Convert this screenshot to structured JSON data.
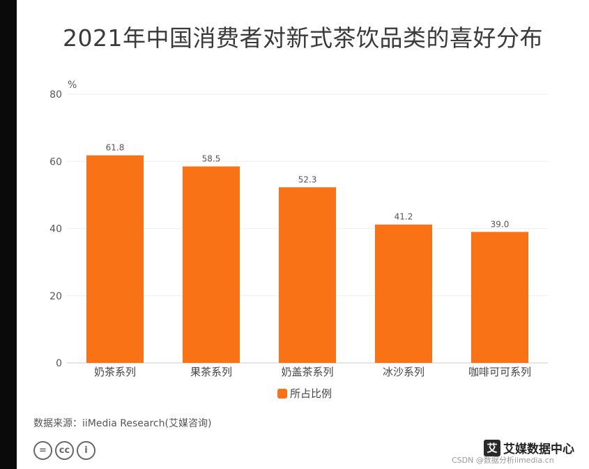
{
  "page": {
    "title": "2021年中国消费者对新式茶饮品类的喜好分布"
  },
  "chart_data": {
    "type": "bar",
    "title": "2021年中国消费者对新式茶饮品类的喜好分布",
    "ylabel": "%",
    "ylim": [
      0,
      80
    ],
    "yticks": [
      0,
      20,
      40,
      60,
      80
    ],
    "categories": [
      "奶茶系列",
      "果茶系列",
      "奶盖茶系列",
      "冰沙系列",
      "咖啡可可系列"
    ],
    "series": [
      {
        "name": "所占比例",
        "values": [
          61.8,
          58.5,
          52.3,
          41.2,
          39.0
        ],
        "labels": [
          "61.8",
          "58.5",
          "52.3",
          "41.2",
          "39.0"
        ]
      }
    ],
    "grid": true,
    "legend_position": "bottom-center"
  },
  "colors": {
    "bar": "#f97316",
    "grid": "#eeeeee",
    "axis": "#cccccc"
  },
  "footer": {
    "source": "数据来源：iiMedia Research(艾媒咨询)",
    "cc_icons": [
      "=",
      "cc",
      "i"
    ],
    "logo_mark": "艾",
    "logo_text": "艾媒数据中心",
    "watermark": "CSDN @数据分析iimedia.cn"
  }
}
